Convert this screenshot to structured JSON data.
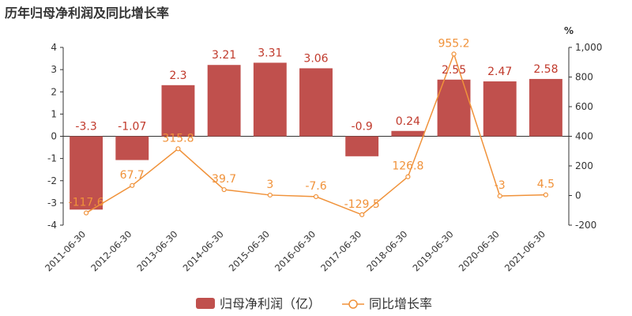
{
  "title": "历年归母净利润及同比增长率",
  "chart_data": {
    "type": "bar",
    "categories": [
      "2011-06-30",
      "2012-06-30",
      "2013-06-30",
      "2014-06-30",
      "2015-06-30",
      "2016-06-30",
      "2017-06-30",
      "2018-06-30",
      "2019-06-30",
      "2020-06-30",
      "2021-06-30"
    ],
    "series": [
      {
        "name": "归母净利润（亿）",
        "type": "bar",
        "axis": "left",
        "values": [
          -3.3,
          -1.07,
          2.3,
          3.21,
          3.31,
          3.06,
          -0.9,
          0.24,
          2.55,
          2.47,
          2.58
        ],
        "labels": [
          "-3.3",
          "-1.07",
          "2.3",
          "3.21",
          "3.31",
          "3.06",
          "-0.9",
          "0.24",
          "2.55",
          "2.47",
          "2.58"
        ],
        "color": "#c0504d"
      },
      {
        "name": "同比增长率",
        "type": "line",
        "axis": "right",
        "values": [
          -117.6,
          67.7,
          315.8,
          39.7,
          3,
          -7.6,
          -129.5,
          126.8,
          955.2,
          -3,
          4.5
        ],
        "labels": [
          "-117.6",
          "67.7",
          "315.8",
          "39.7",
          "3",
          "-7.6",
          "-129.5",
          "126.8",
          "955.2",
          "-3",
          "4.5"
        ],
        "color": "#f0923a"
      }
    ],
    "left_axis": {
      "ylim": [
        -4,
        4
      ],
      "ticks": [
        "4",
        "3",
        "2",
        "1",
        "0",
        "-1",
        "-2",
        "-3",
        "-4"
      ]
    },
    "right_axis": {
      "ylim": [
        -200,
        1000
      ],
      "unit": "%",
      "ticks": [
        "1,000",
        "800",
        "600",
        "400",
        "200",
        "0",
        "-200"
      ]
    },
    "legend_position": "bottom-center"
  }
}
